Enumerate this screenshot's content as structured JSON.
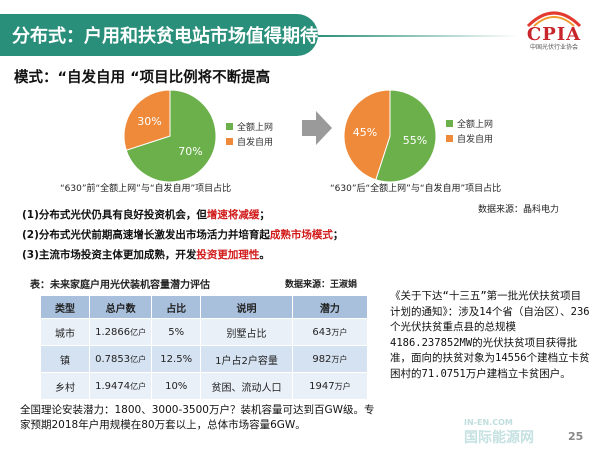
{
  "slide": {
    "title": "分布式：户用和扶贫电站市场值得期待",
    "logo": {
      "text": "CPIA",
      "subtitle": "中国光伏行业协会"
    },
    "mode_title": "模式：“自发自用 “项目比例将不断提高",
    "source_1": "数据来源：晶科电力",
    "points": [
      {
        "prefix": "(1)分布式光伏仍具有良好投资机会，但",
        "highlight": "增速将减缓",
        "suffix": "；"
      },
      {
        "prefix": "(2)分布式光伏前期高速增长激发出市场活力并培育起",
        "highlight": "成熟市场模式",
        "suffix": "；"
      },
      {
        "prefix": "(3)主流市场投资主体更加成熟，开发",
        "highlight": "投资更加理性",
        "suffix": "。"
      }
    ],
    "table": {
      "title": "表：未来家庭户用光伏装机容量潜力评估",
      "source": "数据来源：王淑娟",
      "headers": [
        "类型",
        "总户数",
        "占比",
        "说明",
        "潜力"
      ],
      "rows": [
        {
          "type": "城市",
          "households": "1.2866",
          "households_unit": "亿户",
          "share": "5%",
          "note": "别墅占比",
          "potential": "643",
          "potential_unit": "万户"
        },
        {
          "type": "镇",
          "households": "0.7853",
          "households_unit": "亿户",
          "share": "12.5%",
          "note": "1户占2户容量",
          "potential": "982",
          "potential_unit": "万户"
        },
        {
          "type": "乡村",
          "households": "1.9474",
          "households_unit": "亿户",
          "share": "10%",
          "note": "贫困、流动人口",
          "potential": "1947",
          "potential_unit": "万户"
        }
      ]
    },
    "bottom_note": "全国理论安装潜力：1800、3000-3500万户？装机容量可达到百GW级。专家预期2018年户用规模在80万套以上，总体市场容量6GW。",
    "notice": "《关于下达“十三五”第一批光伏扶贫项目计划的通知》：涉及14个省（自治区）、236个光伏扶贫重点县的总规模4186.237852MW的光伏扶贫项目获得批准，面向的扶贫对象为14556个建档立卡贫困村的71.0751万户建档立卡贫困户。",
    "page_number": "25",
    "watermark": {
      "main": "国际能源网",
      "sub": "IN-EN.COM"
    }
  },
  "colors": {
    "green": "#6bb04a",
    "orange": "#ee8a3a",
    "teal": "#2a8f7a",
    "red": "#d21c1c"
  },
  "chart_data": [
    {
      "type": "pie",
      "categories": [
        "全额上网",
        "自发自用"
      ],
      "values": [
        70,
        30
      ],
      "labels": [
        "70%",
        "30%"
      ],
      "colors": [
        "#6bb04a",
        "#ee8a3a"
      ],
      "caption": "“630”前“全额上网”与“自发自用”项目占比",
      "legend_position": "right"
    },
    {
      "type": "pie",
      "categories": [
        "全额上网",
        "自发自用"
      ],
      "values": [
        55,
        45
      ],
      "labels": [
        "55%",
        "45%"
      ],
      "colors": [
        "#6bb04a",
        "#ee8a3a"
      ],
      "caption": "“630”后“全额上网”与“自发自用”项目占比",
      "legend_position": "right"
    }
  ]
}
